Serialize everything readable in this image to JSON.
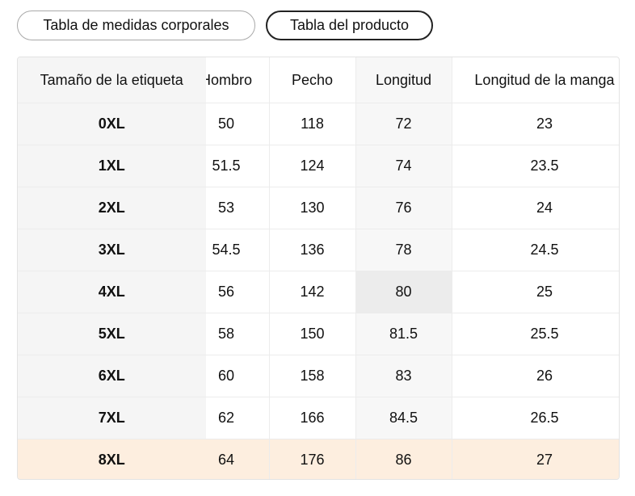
{
  "header": {
    "tabs": [
      "Tabla de medidas corporales",
      "Tabla del producto"
    ]
  },
  "table": {
    "columns": [
      "Tamaño de la etiqueta",
      "Hombro",
      "Pecho",
      "Longitud",
      "Longitud de la manga"
    ],
    "rows": [
      [
        "0XL",
        "50",
        "118",
        "72",
        "23"
      ],
      [
        "1XL",
        "51.5",
        "124",
        "74",
        "23.5"
      ],
      [
        "2XL",
        "53",
        "130",
        "76",
        "24"
      ],
      [
        "3XL",
        "54.5",
        "136",
        "78",
        "24.5"
      ],
      [
        "4XL",
        "56",
        "142",
        "80",
        "25"
      ],
      [
        "5XL",
        "58",
        "150",
        "81.5",
        "25.5"
      ],
      [
        "6XL",
        "60",
        "158",
        "83",
        "26"
      ],
      [
        "7XL",
        "62",
        "166",
        "84.5",
        "26.5"
      ],
      [
        "8XL",
        "64",
        "176",
        "86",
        "27"
      ]
    ]
  }
}
